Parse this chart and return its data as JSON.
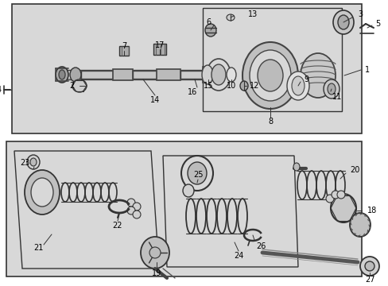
{
  "fig_width": 4.89,
  "fig_height": 3.6,
  "dpi": 100,
  "bg_color": "#ffffff",
  "panel_bg": "#d8d8d8",
  "box_edge": "#000000",
  "part_color": "#444444",
  "part_fill": "#cccccc",
  "part_dark": "#888888"
}
